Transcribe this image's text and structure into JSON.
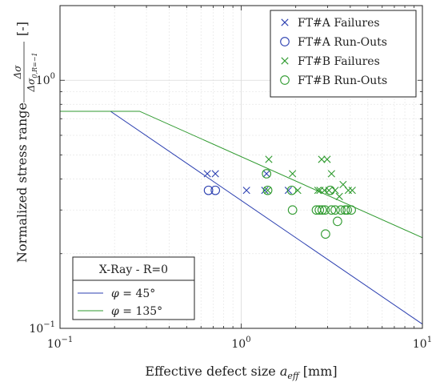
{
  "chart_data": {
    "type": "scatter",
    "x_scale": "log",
    "y_scale": "log",
    "xlim": [
      0.1,
      10
    ],
    "ylim": [
      0.1,
      2
    ],
    "grid": true,
    "xlabel_prefix": "Effective defect size ",
    "xlabel_var": "a",
    "xlabel_sub": "eff",
    "xlabel_unit": " [mm]",
    "ylabel_text": "Normalized stress range",
    "ylabel_frac_num": "Δσ",
    "ylabel_frac_den": "Δσ",
    "ylabel_frac_den_sub": "0,R=−1",
    "ylabel_unit": "[-]",
    "x_ticks": [
      {
        "v": 0.1,
        "label": "10",
        "exp": "−1"
      },
      {
        "v": 1,
        "label": "10",
        "exp": "0"
      },
      {
        "v": 10,
        "label": "10",
        "exp": "1"
      }
    ],
    "y_ticks": [
      {
        "v": 0.1,
        "label": "10",
        "exp": "−1"
      },
      {
        "v": 1,
        "label": "10",
        "exp": "0"
      }
    ],
    "colors": {
      "blue": "#2b3fb0",
      "green": "#2f9a2f"
    },
    "series": [
      {
        "name": "FT#A Failures",
        "marker": "x",
        "color": "#2b3fb0",
        "points": [
          [
            0.65,
            0.42
          ],
          [
            0.72,
            0.42
          ],
          [
            1.07,
            0.36
          ],
          [
            1.35,
            0.36
          ],
          [
            1.38,
            0.42
          ],
          [
            1.82,
            0.36
          ]
        ]
      },
      {
        "name": "FT#A Run-Outs",
        "marker": "o",
        "color": "#2b3fb0",
        "points": [
          [
            0.66,
            0.36
          ],
          [
            0.72,
            0.36
          ]
        ]
      },
      {
        "name": "FT#B Failures",
        "marker": "x",
        "color": "#2f9a2f",
        "points": [
          [
            1.42,
            0.48
          ],
          [
            1.4,
            0.36
          ],
          [
            1.92,
            0.42
          ],
          [
            2.05,
            0.36
          ],
          [
            2.65,
            0.36
          ],
          [
            2.72,
            0.36
          ],
          [
            2.78,
            0.48
          ],
          [
            2.88,
            0.36
          ],
          [
            2.98,
            0.48
          ],
          [
            3.05,
            0.36
          ],
          [
            3.15,
            0.42
          ],
          [
            3.3,
            0.36
          ],
          [
            3.48,
            0.34
          ],
          [
            3.65,
            0.38
          ],
          [
            3.9,
            0.36
          ],
          [
            4.1,
            0.36
          ]
        ]
      },
      {
        "name": "FT#B Run-Outs",
        "marker": "o",
        "color": "#2f9a2f",
        "points": [
          [
            1.38,
            0.42
          ],
          [
            1.4,
            0.36
          ],
          [
            1.9,
            0.36
          ],
          [
            1.92,
            0.3
          ],
          [
            2.6,
            0.3
          ],
          [
            2.7,
            0.3
          ],
          [
            2.8,
            0.3
          ],
          [
            2.9,
            0.3
          ],
          [
            2.92,
            0.24
          ],
          [
            3.1,
            0.36
          ],
          [
            3.15,
            0.3
          ],
          [
            3.3,
            0.3
          ],
          [
            3.4,
            0.27
          ],
          [
            3.55,
            0.3
          ],
          [
            3.75,
            0.3
          ],
          [
            3.85,
            0.3
          ],
          [
            4.05,
            0.3
          ]
        ]
      }
    ],
    "lines": [
      {
        "name": "φ = 45°",
        "var": "φ",
        "rest": " = 45°",
        "color": "#2b3fb0",
        "points": [
          [
            0.1,
            0.75
          ],
          [
            0.19,
            0.75
          ],
          [
            10,
            0.104
          ]
        ]
      },
      {
        "name": "φ = 135°",
        "var": "φ",
        "rest": " = 135°",
        "color": "#2f9a2f",
        "points": [
          [
            0.1,
            0.75
          ],
          [
            0.275,
            0.75
          ],
          [
            10,
            0.232
          ]
        ]
      }
    ],
    "legend_top": {
      "placement": "top-right",
      "entries": [
        "FT#A Failures",
        "FT#A Run-Outs",
        "FT#B Failures",
        "FT#B Run-Outs"
      ]
    },
    "legend_bottom": {
      "placement": "bottom-left",
      "title": "X-Ray - R=0",
      "entries": [
        "φ = 45°",
        "φ = 135°"
      ]
    }
  }
}
